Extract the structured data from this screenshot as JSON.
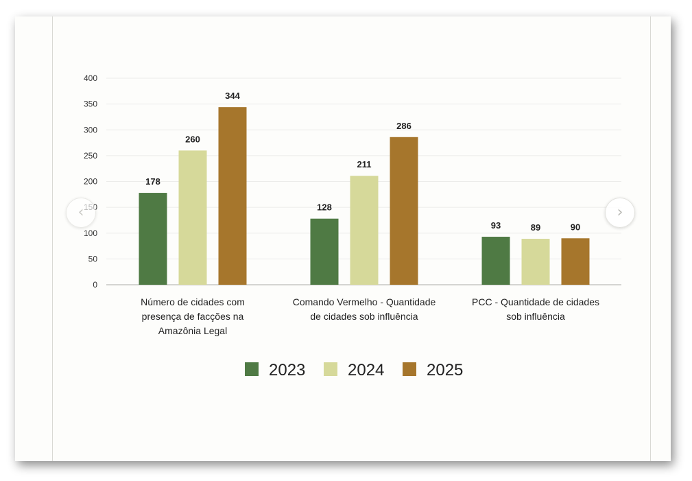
{
  "chart_data": {
    "type": "bar",
    "categories": [
      "Número de cidades com presença de facções na Amazônia Legal",
      "Comando Vermelho - Quantidade de cidades sob influência",
      "PCC - Quantidade de cidades sob influência"
    ],
    "category_lines": [
      [
        "Número de cidades com",
        "presença de facções na",
        "Amazônia Legal"
      ],
      [
        "Comando Vermelho - Quantidade",
        "de cidades sob influência"
      ],
      [
        "PCC - Quantidade de cidades",
        "sob influência"
      ]
    ],
    "series": [
      {
        "name": "2023",
        "color": "#4f7a44",
        "values": [
          178,
          128,
          93
        ]
      },
      {
        "name": "2024",
        "color": "#d6d99a",
        "values": [
          260,
          211,
          89
        ]
      },
      {
        "name": "2025",
        "color": "#a6762c",
        "values": [
          344,
          286,
          90
        ]
      }
    ],
    "y_ticks": [
      0,
      50,
      100,
      150,
      200,
      250,
      300,
      350,
      400
    ],
    "ylim": [
      0,
      400
    ],
    "grid": true,
    "legend": "bottom-center",
    "data_labels": true
  },
  "carousel": {
    "prev_icon": "chevron-left-icon",
    "next_icon": "chevron-right-icon"
  }
}
